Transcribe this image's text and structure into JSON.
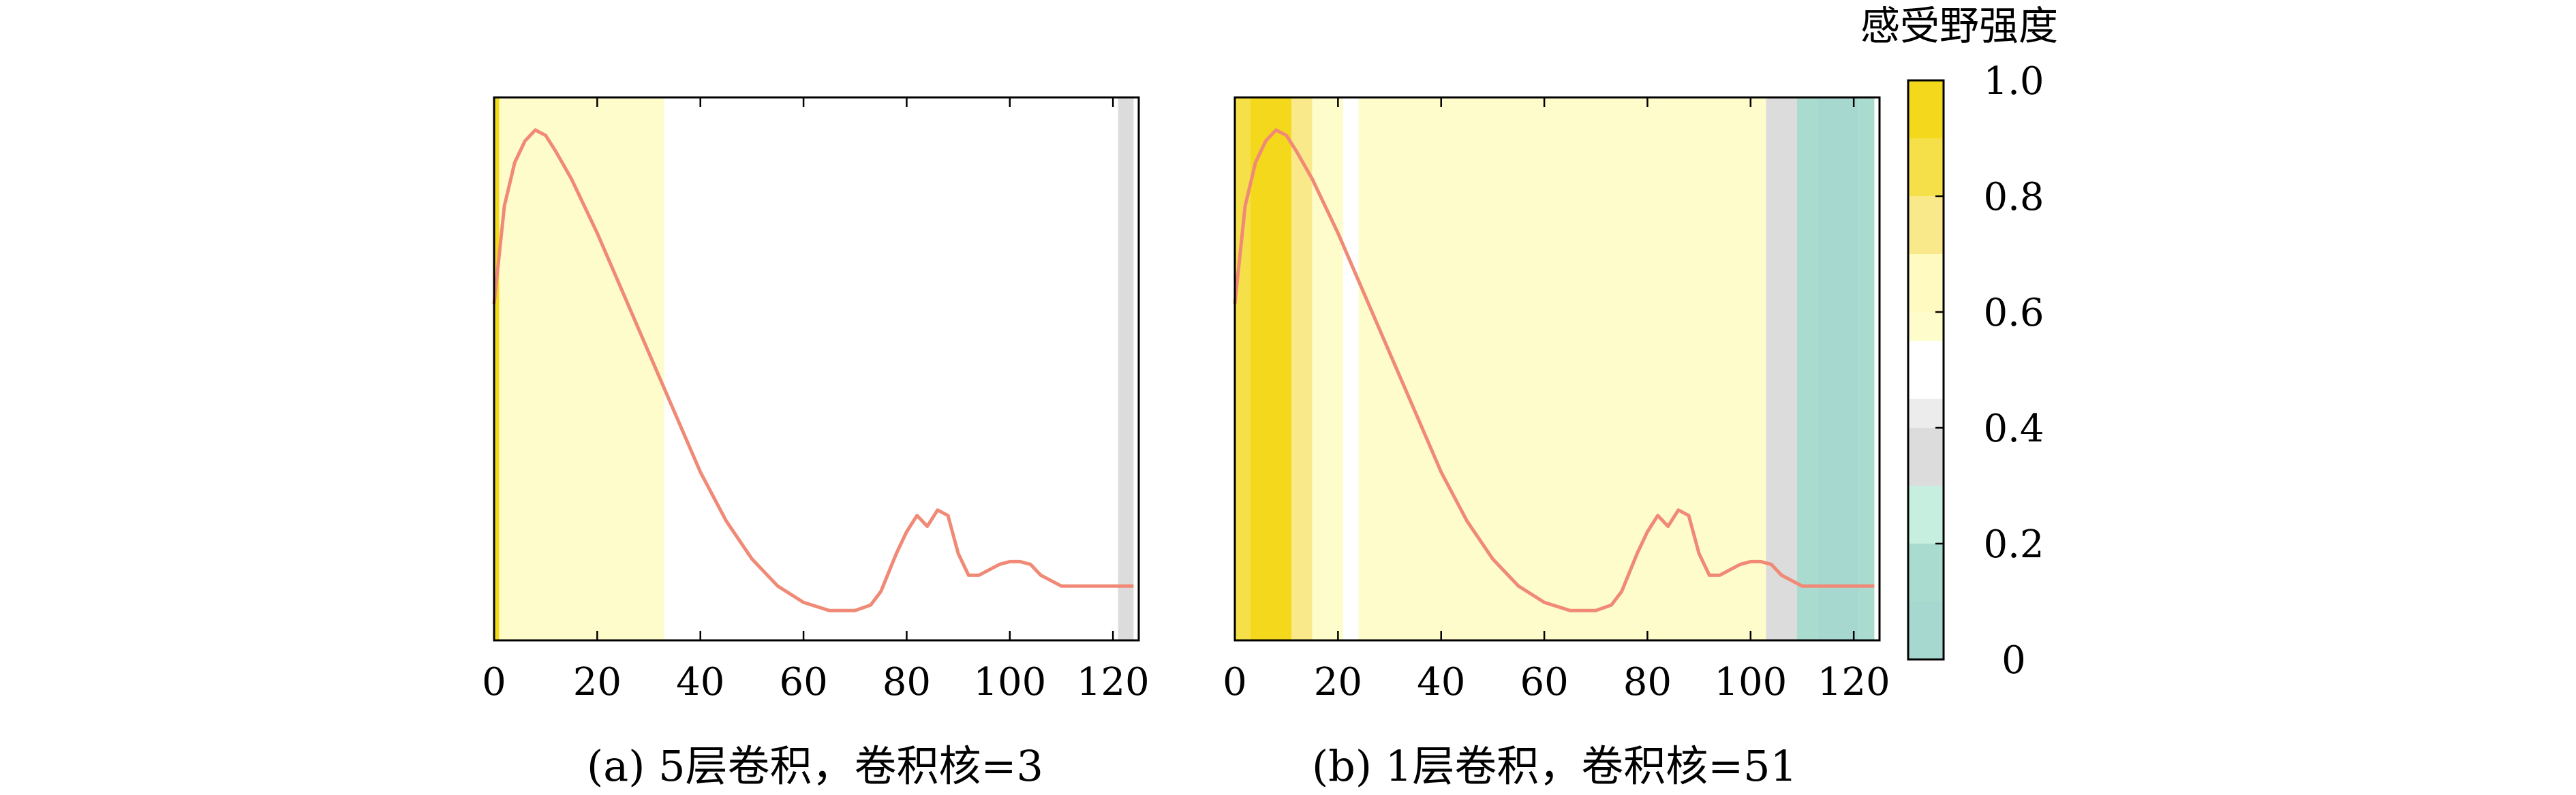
{
  "colorbar": {
    "title": "感受野强度",
    "ticks": [
      "0",
      "0.2",
      "0.4",
      "0.6",
      "0.8",
      "1.0"
    ],
    "tick_values": [
      0,
      0.2,
      0.4,
      0.6,
      0.8,
      1.0
    ],
    "range": [
      0,
      1.0
    ]
  },
  "colors": {
    "curve": "#f08a76",
    "curve_low": "#9aa0b4",
    "axis": "#000000"
  },
  "chart_data": [
    {
      "type": "line",
      "caption": "(a) 5层卷积，卷积核=3",
      "xlim": [
        0,
        125
      ],
      "ylim": [
        0,
        1
      ],
      "xticks": [
        "0",
        "20",
        "40",
        "60",
        "80",
        "100",
        "120"
      ],
      "xtick_values": [
        0,
        20,
        40,
        60,
        80,
        100,
        120
      ],
      "y_tick_labels": false,
      "background_bands": [
        {
          "x0": 0,
          "x1": 1,
          "value": 0.9
        },
        {
          "x0": 1,
          "x1": 33,
          "value": 0.55
        },
        {
          "x0": 33,
          "x1": 121,
          "value": 0.45
        },
        {
          "x0": 121,
          "x1": 124,
          "value": 0.3
        }
      ],
      "series": [
        {
          "x": [
            0,
            2,
            4,
            6,
            8,
            10,
            12,
            15,
            20,
            25,
            30,
            35,
            40,
            45,
            50,
            55,
            60,
            65,
            70,
            73,
            75,
            78,
            80,
            82,
            84,
            86,
            88,
            90,
            92,
            94,
            96,
            98,
            100,
            102,
            104,
            106,
            108,
            110,
            115,
            120,
            124
          ],
          "y": [
            0.62,
            0.8,
            0.88,
            0.92,
            0.94,
            0.93,
            0.9,
            0.85,
            0.75,
            0.64,
            0.53,
            0.42,
            0.31,
            0.22,
            0.15,
            0.1,
            0.07,
            0.055,
            0.055,
            0.065,
            0.09,
            0.16,
            0.2,
            0.23,
            0.21,
            0.24,
            0.23,
            0.16,
            0.12,
            0.12,
            0.13,
            0.14,
            0.145,
            0.145,
            0.14,
            0.12,
            0.11,
            0.1,
            0.1,
            0.1,
            0.1
          ]
        }
      ]
    },
    {
      "type": "line",
      "caption": "(b) 1层卷积，卷积核=51",
      "xlim": [
        0,
        125
      ],
      "ylim": [
        0,
        1
      ],
      "xticks": [
        "0",
        "20",
        "40",
        "60",
        "80",
        "100",
        "120"
      ],
      "xtick_values": [
        0,
        20,
        40,
        60,
        80,
        100,
        120
      ],
      "y_tick_labels": false,
      "background_bands": [
        {
          "x0": 0,
          "x1": 3,
          "value": 0.8
        },
        {
          "x0": 3,
          "x1": 11,
          "value": 0.9
        },
        {
          "x0": 11,
          "x1": 15,
          "value": 0.75
        },
        {
          "x0": 15,
          "x1": 21,
          "value": 0.55
        },
        {
          "x0": 21,
          "x1": 24,
          "value": 0.45
        },
        {
          "x0": 24,
          "x1": 103,
          "value": 0.55
        },
        {
          "x0": 103,
          "x1": 109,
          "value": 0.3
        },
        {
          "x0": 109,
          "x1": 113,
          "value": 0.15
        },
        {
          "x0": 113,
          "x1": 121,
          "value": 0.08
        },
        {
          "x0": 121,
          "x1": 124,
          "value": 0.15
        }
      ],
      "series": [
        {
          "x": [
            0,
            2,
            4,
            6,
            8,
            10,
            12,
            15,
            20,
            25,
            30,
            35,
            40,
            45,
            50,
            55,
            60,
            65,
            70,
            73,
            75,
            78,
            80,
            82,
            84,
            86,
            88,
            90,
            92,
            94,
            96,
            98,
            100,
            102,
            104,
            106,
            108,
            110,
            115,
            120,
            124
          ],
          "y": [
            0.62,
            0.8,
            0.88,
            0.92,
            0.94,
            0.93,
            0.9,
            0.85,
            0.75,
            0.64,
            0.53,
            0.42,
            0.31,
            0.22,
            0.15,
            0.1,
            0.07,
            0.055,
            0.055,
            0.065,
            0.09,
            0.16,
            0.2,
            0.23,
            0.21,
            0.24,
            0.23,
            0.16,
            0.12,
            0.12,
            0.13,
            0.14,
            0.145,
            0.145,
            0.14,
            0.12,
            0.11,
            0.1,
            0.1,
            0.1,
            0.1
          ]
        }
      ]
    }
  ]
}
